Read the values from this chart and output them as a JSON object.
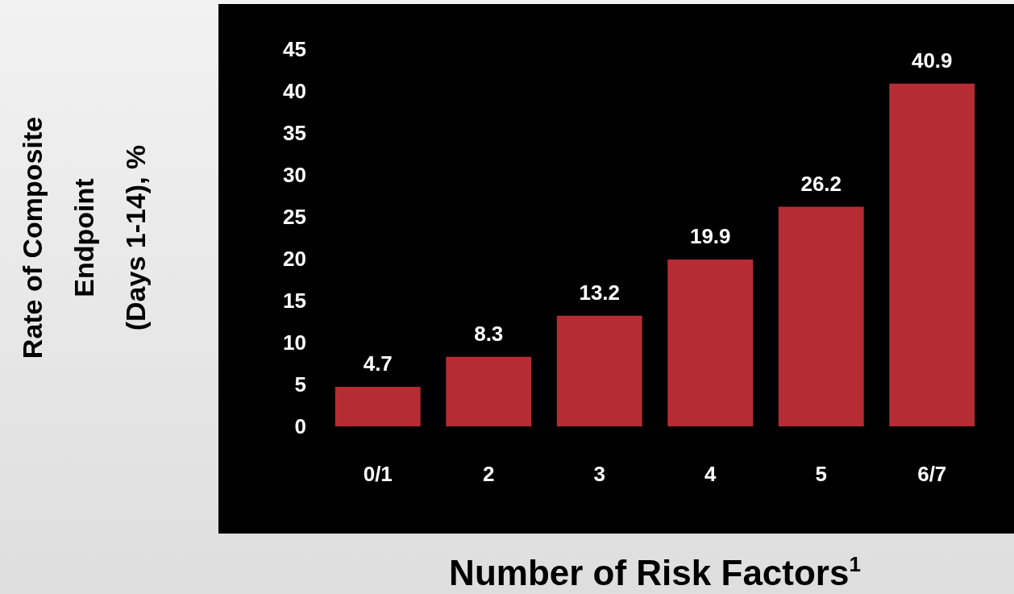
{
  "chart_data": {
    "type": "bar",
    "categories": [
      "0/1",
      "2",
      "3",
      "4",
      "5",
      "6/7"
    ],
    "values": [
      4.7,
      8.3,
      13.2,
      19.9,
      26.2,
      40.9
    ],
    "color": "#b52d33",
    "ylim": [
      0,
      45
    ],
    "yticks": [
      0,
      5,
      10,
      15,
      20,
      25,
      30,
      35,
      40,
      45
    ],
    "ylabel": "Rate of Composite\nEndpoint\n(Days 1-14), %",
    "xlabel": "Number of Risk Factors$^{1}$",
    "data_labels": true,
    "grid": false
  }
}
